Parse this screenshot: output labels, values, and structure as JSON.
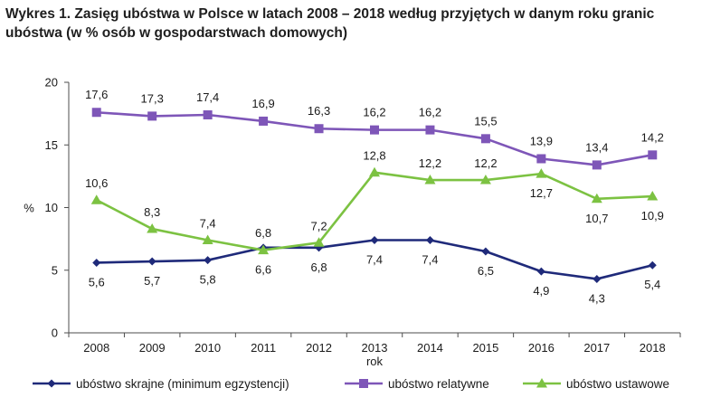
{
  "title": "Wykres 1. Zasięg ubóstwa w Polsce w latach 2008 – 2018 według przyjętych w danym roku granic ubóstwa (w % osób w gospodarstwach domowych)",
  "chart_data": {
    "type": "line",
    "title": "Wykres 1. Zasięg ubóstwa w Polsce w latach 2008 – 2018 według przyjętych w danym roku granic ubóstwa (w % osób w gospodarstwach domowych)",
    "xlabel": "rok",
    "ylabel": "%",
    "ylim": [
      0,
      20
    ],
    "yticks": [
      0,
      5,
      10,
      15,
      20
    ],
    "grid": false,
    "legend_position": "bottom",
    "categories": [
      "2008",
      "2009",
      "2010",
      "2011",
      "2012",
      "2013",
      "2014",
      "2015",
      "2016",
      "2017",
      "2018"
    ],
    "series": [
      {
        "name": "ubóstwo skrajne (minimum egzystencji)",
        "color": "#1f2a7a",
        "marker": "diamond",
        "values": [
          5.6,
          5.7,
          5.8,
          6.8,
          6.8,
          7.4,
          7.4,
          6.5,
          4.9,
          4.3,
          5.4
        ],
        "labels": [
          "5,6",
          "5,7",
          "5,8",
          "6,8",
          "6,8",
          "7,4",
          "7,4",
          "6,5",
          "4,9",
          "4,3",
          "5,4"
        ]
      },
      {
        "name": "ubóstwo relatywne",
        "color": "#7e56b8",
        "marker": "square",
        "values": [
          17.6,
          17.3,
          17.4,
          16.9,
          16.3,
          16.2,
          16.2,
          15.5,
          13.9,
          13.4,
          14.2
        ],
        "labels": [
          "17,6",
          "17,3",
          "17,4",
          "16,9",
          "16,3",
          "16,2",
          "16,2",
          "15,5",
          "13,9",
          "13,4",
          "14,2"
        ]
      },
      {
        "name": "ubóstwo ustawowe",
        "color": "#7cc242",
        "marker": "triangle",
        "values": [
          10.6,
          8.3,
          7.4,
          6.6,
          7.2,
          12.8,
          12.2,
          12.2,
          12.7,
          10.7,
          10.9
        ],
        "labels": [
          "10,6",
          "8,3",
          "7,4",
          "6,6",
          "7,2",
          "12,8",
          "12,2",
          "12,2",
          "12,7",
          "10,7",
          "10,9"
        ]
      }
    ]
  }
}
